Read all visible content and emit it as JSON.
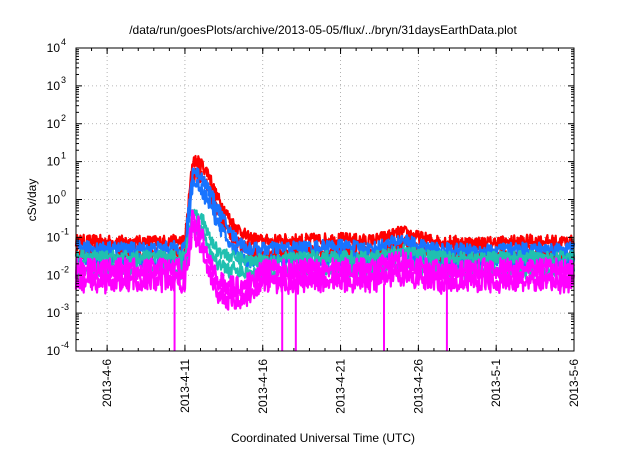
{
  "chart_data": {
    "type": "line",
    "title": "/data/run/goesPlots/archive/2013-05-05/flux/../bryn/31daysEarthData.plot",
    "xlabel": "Coordinated Universal Time (UTC)",
    "ylabel": "cSv/day",
    "yscale": "log",
    "ylim": [
      0.0001,
      10000
    ],
    "xlim": [
      "2013-04-04",
      "2013-05-06"
    ],
    "grid": true,
    "legend": "none",
    "y_ticks": [
      {
        "value": 0.0001,
        "base": "10",
        "exp": "-4"
      },
      {
        "value": 0.001,
        "base": "10",
        "exp": "-3"
      },
      {
        "value": 0.01,
        "base": "10",
        "exp": "-2"
      },
      {
        "value": 0.1,
        "base": "10",
        "exp": "-1"
      },
      {
        "value": 1,
        "base": "10",
        "exp": "0"
      },
      {
        "value": 10,
        "base": "10",
        "exp": "1"
      },
      {
        "value": 100,
        "base": "10",
        "exp": "2"
      },
      {
        "value": 1000,
        "base": "10",
        "exp": "3"
      },
      {
        "value": 10000,
        "base": "10",
        "exp": "4"
      }
    ],
    "x_ticks": [
      {
        "date": "2013-04-06",
        "label": "2013-4-6"
      },
      {
        "date": "2013-04-11",
        "label": "2013-4-11"
      },
      {
        "date": "2013-04-16",
        "label": "2013-4-16"
      },
      {
        "date": "2013-04-21",
        "label": "2013-4-21"
      },
      {
        "date": "2013-04-26",
        "label": "2013-4-26"
      },
      {
        "date": "2013-05-01",
        "label": "2013-5-1"
      },
      {
        "date": "2013-05-06",
        "label": "2013-5-6"
      }
    ],
    "series": [
      {
        "color": "#ff0000",
        "x": [
          "2013-04-04",
          "2013-04-08",
          "2013-04-11",
          "2013-04-11T12:00",
          "2013-04-12",
          "2013-04-12T12:00",
          "2013-04-13",
          "2013-04-14",
          "2013-04-15",
          "2013-04-16",
          "2013-04-19",
          "2013-04-21",
          "2013-04-23",
          "2013-04-25",
          "2013-04-26",
          "2013-04-27",
          "2013-04-30",
          "2013-05-03",
          "2013-05-06"
        ],
        "y": [
          0.08,
          0.075,
          0.08,
          11,
          9,
          5,
          1.3,
          0.25,
          0.1,
          0.08,
          0.085,
          0.09,
          0.08,
          0.14,
          0.1,
          0.08,
          0.07,
          0.08,
          0.075
        ]
      },
      {
        "color": "#1874ff",
        "x": [
          "2013-04-04",
          "2013-04-08",
          "2013-04-11",
          "2013-04-11T12:00",
          "2013-04-12",
          "2013-04-12T12:00",
          "2013-04-13",
          "2013-04-14",
          "2013-04-15",
          "2013-04-16",
          "2013-04-19",
          "2013-04-21",
          "2013-04-23",
          "2013-04-25",
          "2013-04-26",
          "2013-04-27",
          "2013-04-30",
          "2013-05-03",
          "2013-05-06"
        ],
        "y": [
          0.055,
          0.05,
          0.055,
          6,
          4.5,
          2,
          0.7,
          0.12,
          0.05,
          0.05,
          0.055,
          0.06,
          0.05,
          0.09,
          0.06,
          0.05,
          0.045,
          0.05,
          0.05
        ]
      },
      {
        "color": "#20c0b0",
        "x": [
          "2013-04-04",
          "2013-04-08",
          "2013-04-11",
          "2013-04-11T12:00",
          "2013-04-12",
          "2013-04-12T12:00",
          "2013-04-13",
          "2013-04-14",
          "2013-04-15",
          "2013-04-16",
          "2013-04-19",
          "2013-04-21",
          "2013-04-23",
          "2013-04-25",
          "2013-04-26",
          "2013-04-27",
          "2013-04-30",
          "2013-05-03",
          "2013-05-06"
        ],
        "y": [
          0.03,
          0.03,
          0.03,
          0.5,
          0.4,
          0.12,
          0.05,
          0.03,
          0.025,
          0.025,
          0.03,
          0.03,
          0.028,
          0.045,
          0.035,
          0.03,
          0.028,
          0.03,
          0.03
        ]
      },
      {
        "color": "#ff00ff",
        "x": [
          "2013-04-04",
          "2013-04-08",
          "2013-04-11",
          "2013-04-11T12:00",
          "2013-04-12",
          "2013-04-12T12:00",
          "2013-04-13",
          "2013-04-14",
          "2013-04-15",
          "2013-04-16",
          "2013-04-19",
          "2013-04-21",
          "2013-04-23",
          "2013-04-25",
          "2013-04-26",
          "2013-04-27",
          "2013-04-30",
          "2013-05-03",
          "2013-05-06"
        ],
        "y": [
          0.015,
          0.015,
          0.015,
          0.35,
          0.15,
          0.03,
          0.008,
          0.005,
          0.006,
          0.014,
          0.015,
          0.016,
          0.015,
          0.025,
          0.018,
          0.015,
          0.015,
          0.015,
          0.015
        ]
      }
    ],
    "dropouts": [
      {
        "color": "#ff00ff",
        "date": "2013-04-10T08:00",
        "y": 0.0001
      },
      {
        "color": "#ff00ff",
        "date": "2013-04-17T06:00",
        "y": 0.0001
      },
      {
        "color": "#ff00ff",
        "date": "2013-04-18T03:00",
        "y": 0.0001
      },
      {
        "color": "#ff00ff",
        "date": "2013-04-23T19:00",
        "y": 0.0001
      },
      {
        "color": "#ff00ff",
        "date": "2013-04-27T20:00",
        "y": 0.0001
      }
    ]
  }
}
